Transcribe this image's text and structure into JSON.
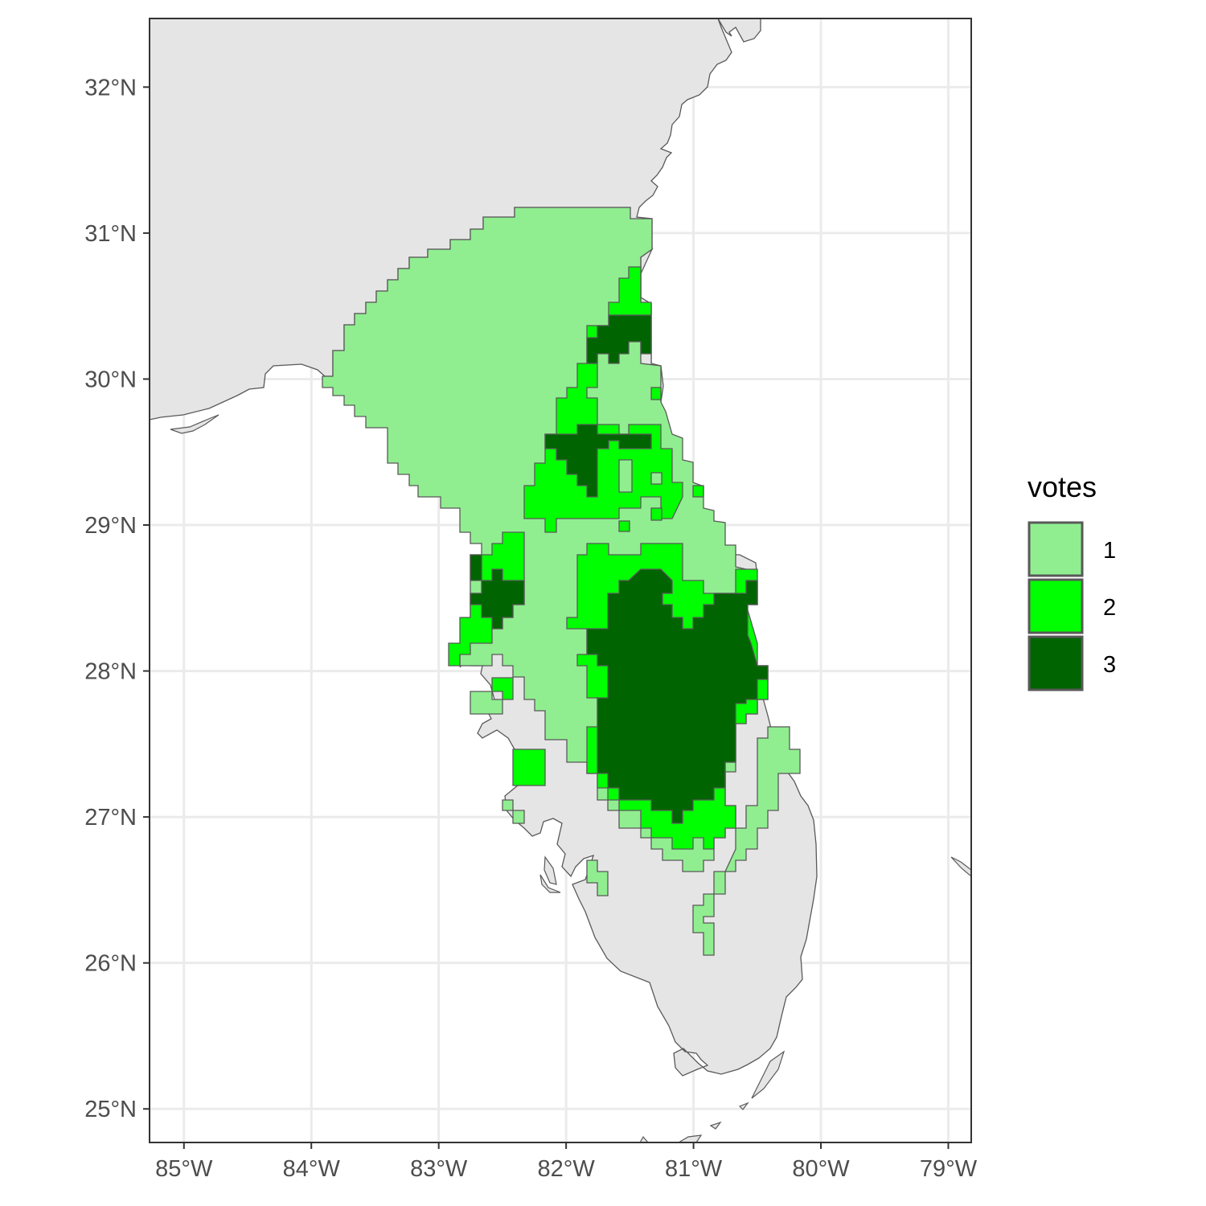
{
  "chart_data": {
    "type": "map",
    "x_ticks": [
      "85°W",
      "84°W",
      "83°W",
      "82°W",
      "81°W",
      "80°W",
      "79°W"
    ],
    "y_ticks": [
      "32°N",
      "31°N",
      "30°N",
      "29°N",
      "28°N",
      "27°N",
      "26°N",
      "25°N"
    ],
    "lon_range": [
      -85.27,
      -78.82
    ],
    "lat_range": [
      24.77,
      32.47
    ],
    "grid": true,
    "legend": {
      "title": "votes",
      "placement": "right",
      "entries": [
        {
          "label": "1",
          "color": "#90EE90"
        },
        {
          "label": "2",
          "color": "#00FF00"
        },
        {
          "label": "3",
          "color": "#006400"
        }
      ]
    },
    "land_color": "#E5E5E5",
    "outline_color": "#595959"
  }
}
